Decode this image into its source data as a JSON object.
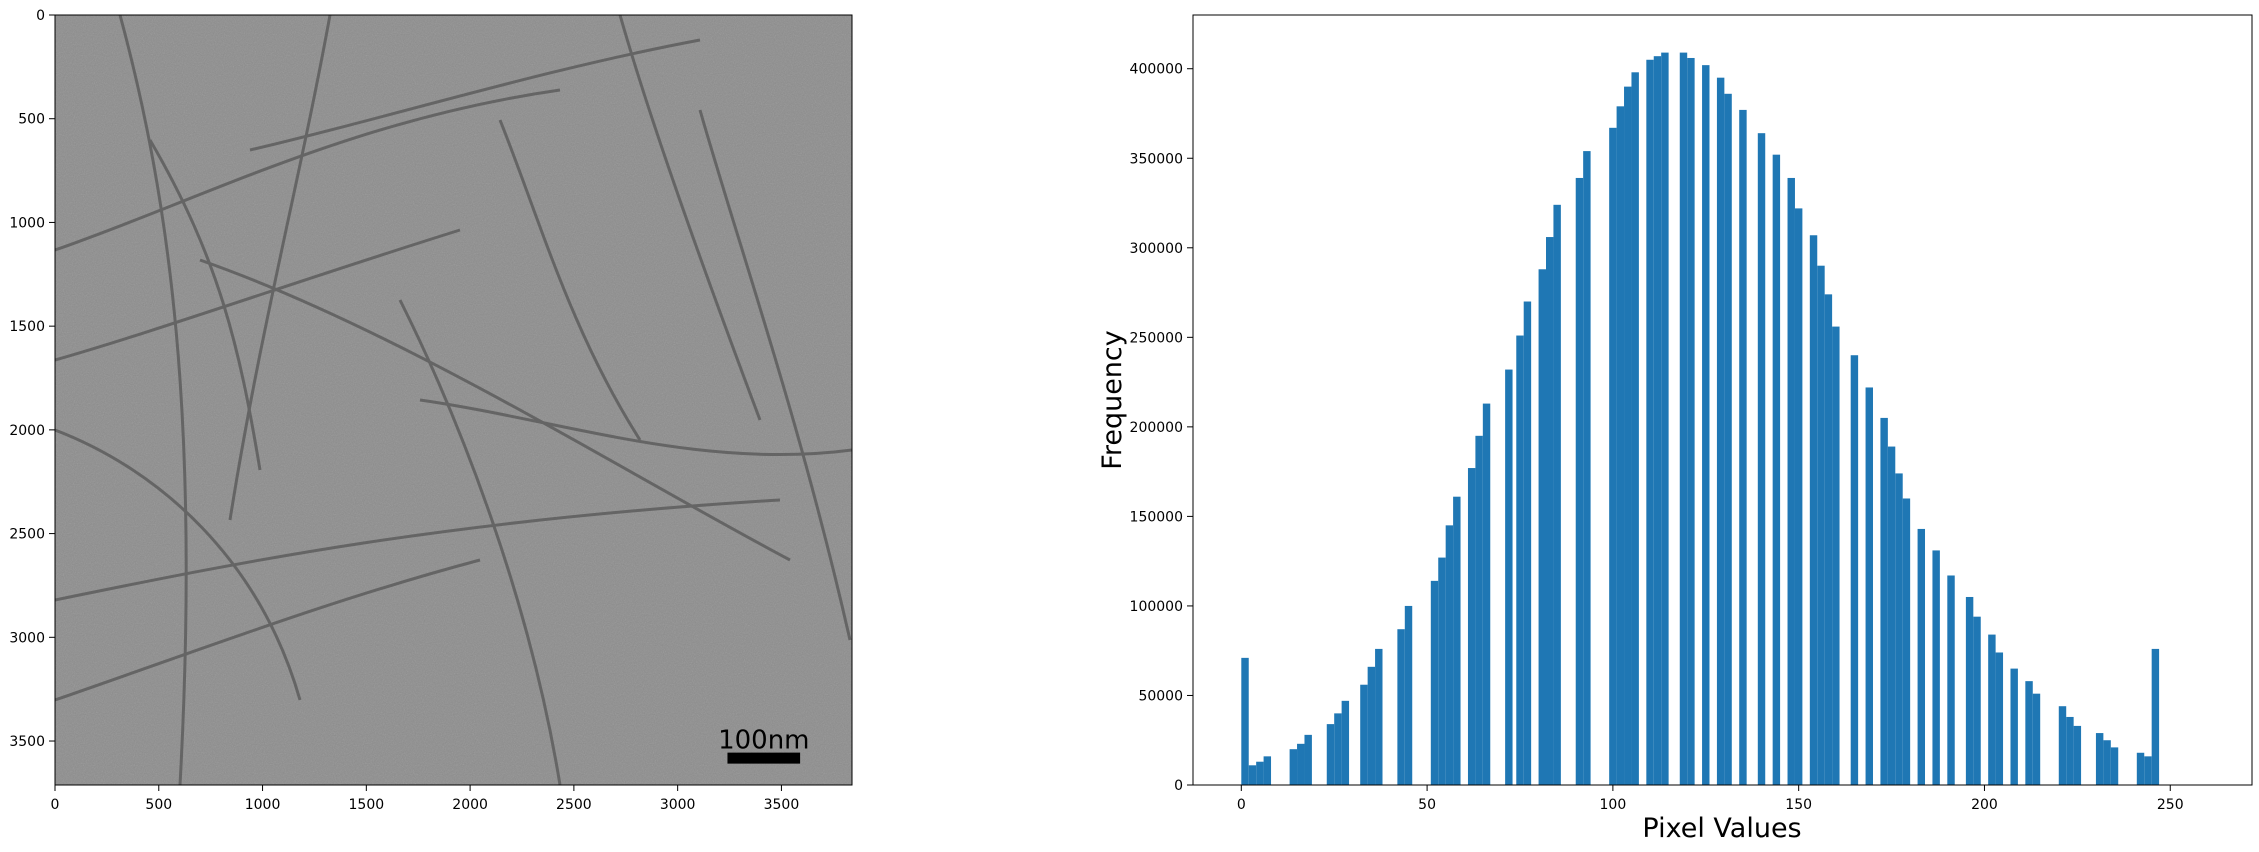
{
  "chart_data": [
    {
      "type": "image",
      "title": "",
      "content": "grayscale electron micrograph of fibrils",
      "xlim": [
        0,
        3840
      ],
      "ylim": [
        3712,
        0
      ],
      "xticks": [
        0,
        500,
        1000,
        1500,
        2000,
        2500,
        3000,
        3500
      ],
      "yticks": [
        0,
        500,
        1000,
        1500,
        2000,
        2500,
        3000,
        3500
      ],
      "scalebar": {
        "label": "100nm",
        "x_range": [
          3240,
          3590
        ],
        "y": 3580
      }
    },
    {
      "type": "bar",
      "title": "",
      "xlabel": "Pixel Values",
      "ylabel": "Frequency",
      "xlim": [
        -13,
        272
      ],
      "ylim": [
        0,
        430000
      ],
      "xticks": [
        0,
        50,
        100,
        150,
        200,
        250
      ],
      "yticks": [
        0,
        50000,
        100000,
        150000,
        200000,
        250000,
        300000,
        350000,
        400000
      ],
      "color": "#1f77b4",
      "x": [
        1,
        3,
        5,
        7,
        9,
        14,
        16,
        18,
        20,
        24,
        26,
        28,
        33,
        35,
        37,
        39,
        43,
        45,
        47,
        52,
        54,
        56,
        58,
        62,
        64,
        66,
        68,
        72,
        75,
        77,
        81,
        83,
        85,
        87,
        91,
        93,
        95,
        100,
        102,
        104,
        106,
        110,
        112,
        114,
        117,
        119,
        121,
        125,
        127,
        129,
        131,
        135,
        137,
        140,
        144,
        146,
        148,
        150,
        154,
        156,
        158,
        160,
        165,
        167,
        169,
        173,
        175,
        177,
        179,
        183,
        185,
        187,
        191,
        193,
        196,
        198,
        202,
        204,
        206,
        208,
        212,
        214,
        216,
        221,
        223,
        225,
        229,
        231,
        233,
        235,
        240,
        242,
        244,
        246,
        250,
        252,
        254
      ],
      "values": [
        71000,
        11000,
        13000,
        16000,
        0,
        20000,
        23000,
        28000,
        0,
        34000,
        40000,
        47000,
        56000,
        66000,
        76000,
        0,
        87000,
        100000,
        0,
        114000,
        127000,
        145000,
        161000,
        177000,
        195000,
        213000,
        0,
        232000,
        251000,
        270000,
        288000,
        306000,
        324000,
        0,
        339000,
        354000,
        0,
        367000,
        379000,
        390000,
        398000,
        405000,
        407000,
        409000,
        0,
        409000,
        406000,
        402000,
        0,
        395000,
        386000,
        377000,
        0,
        364000,
        352000,
        0,
        339000,
        322000,
        307000,
        290000,
        274000,
        256000,
        240000,
        0,
        222000,
        205000,
        189000,
        174000,
        160000,
        143000,
        0,
        131000,
        117000,
        0,
        105000,
        94000,
        84000,
        74000,
        0,
        65000,
        58000,
        51000,
        0,
        44000,
        38000,
        33000,
        0,
        29000,
        25000,
        21000,
        0,
        18000,
        16000,
        76000,
        0,
        0,
        0
      ]
    }
  ]
}
